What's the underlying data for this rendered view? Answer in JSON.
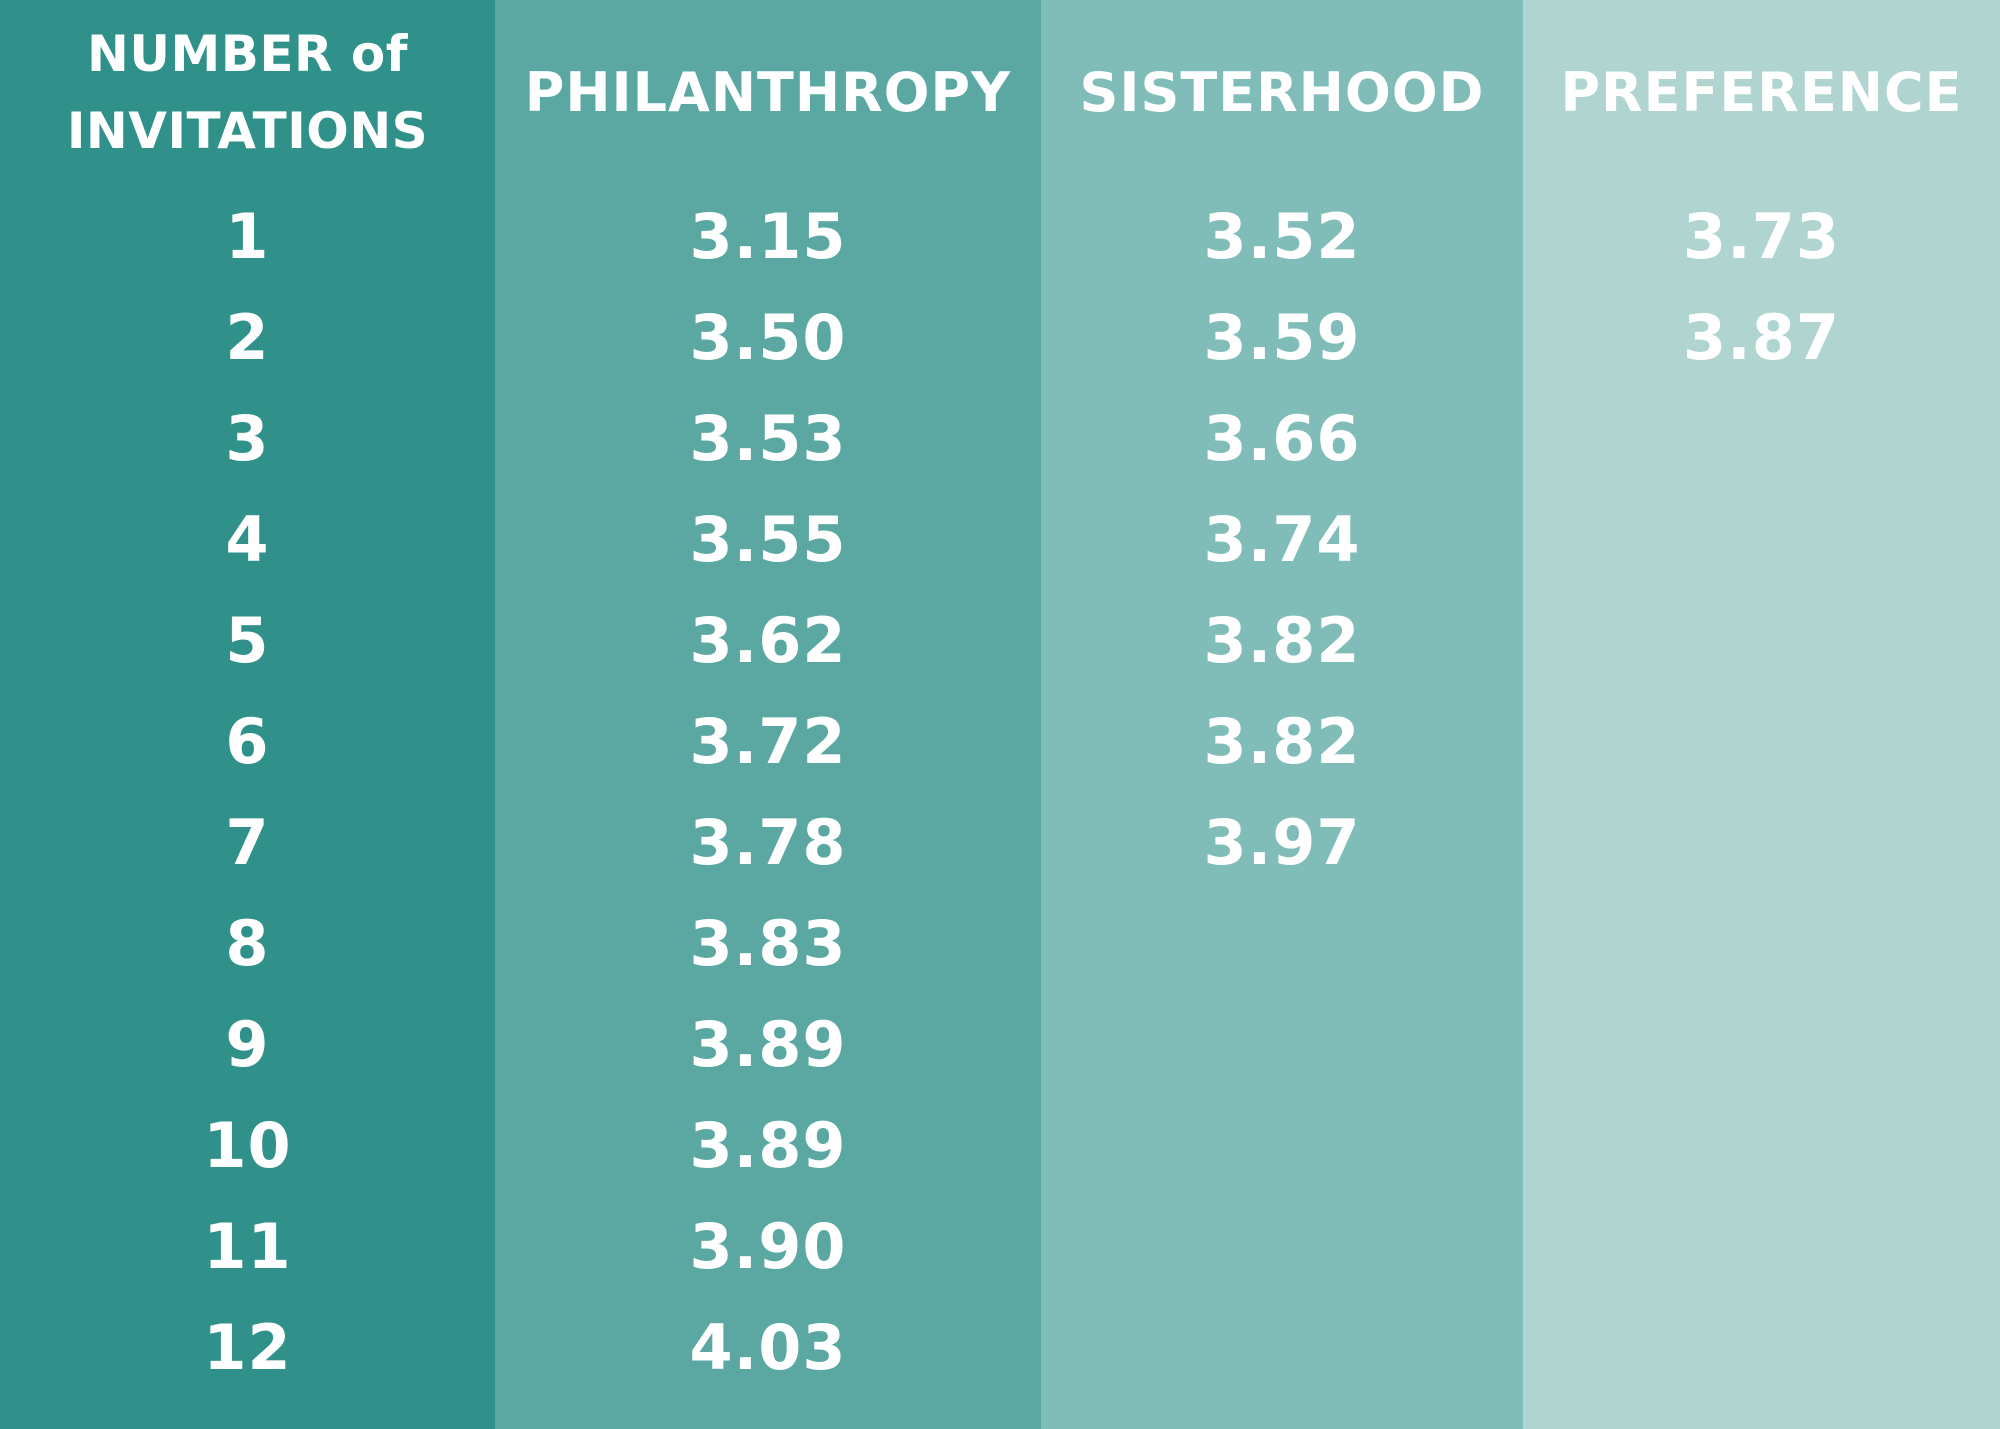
{
  "table": {
    "text_color": "#FFFFFF",
    "palette": {
      "column_1_bg": "#2F9189",
      "column_2_bg": "#5AA8A1",
      "column_3_bg": "#81BDB8",
      "column_4_bg": "#B0D4D0"
    },
    "columns": [
      {
        "id": "number-of-invitations",
        "header_line1": "NUMBER of",
        "header_line2": "INVITATIONS",
        "values": [
          "1",
          "2",
          "3",
          "4",
          "5",
          "6",
          "7",
          "8",
          "9",
          "10",
          "11",
          "12"
        ]
      },
      {
        "id": "philanthropy",
        "header": "PHILANTHROPY",
        "values": [
          "3.15",
          "3.50",
          "3.53",
          "3.55",
          "3.62",
          "3.72",
          "3.78",
          "3.83",
          "3.89",
          "3.89",
          "3.90",
          "4.03"
        ]
      },
      {
        "id": "sisterhood",
        "header": "SISTERHOOD",
        "values": [
          "3.52",
          "3.59",
          "3.66",
          "3.74",
          "3.82",
          "3.82",
          "3.97",
          "",
          "",
          "",
          "",
          ""
        ]
      },
      {
        "id": "preference",
        "header": "PREFERENCE",
        "values": [
          "3.73",
          "3.87",
          "",
          "",
          "",
          "",
          "",
          "",
          "",
          "",
          "",
          ""
        ]
      }
    ]
  },
  "chart_data": {
    "type": "table",
    "title": "",
    "columns": [
      "NUMBER of INVITATIONS",
      "PHILANTHROPY",
      "SISTERHOOD",
      "PREFERENCE"
    ],
    "rows": [
      [
        "1",
        "3.15",
        "3.52",
        "3.73"
      ],
      [
        "2",
        "3.50",
        "3.59",
        "3.87"
      ],
      [
        "3",
        "3.53",
        "3.66",
        null
      ],
      [
        "4",
        "3.55",
        "3.74",
        null
      ],
      [
        "5",
        "3.62",
        "3.82",
        null
      ],
      [
        "6",
        "3.72",
        "3.82",
        null
      ],
      [
        "7",
        "3.78",
        "3.97",
        null
      ],
      [
        "8",
        "3.83",
        null,
        null
      ],
      [
        "9",
        "3.89",
        null,
        null
      ],
      [
        "10",
        "3.89",
        null,
        null
      ],
      [
        "11",
        "3.90",
        null,
        null
      ],
      [
        "12",
        "4.03",
        null,
        null
      ]
    ],
    "layout_hints": {
      "column_shading": [
        "#2F9189",
        "#5AA8A1",
        "#81BDB8",
        "#B0D4D0"
      ],
      "grid": false,
      "header_row": true
    }
  }
}
